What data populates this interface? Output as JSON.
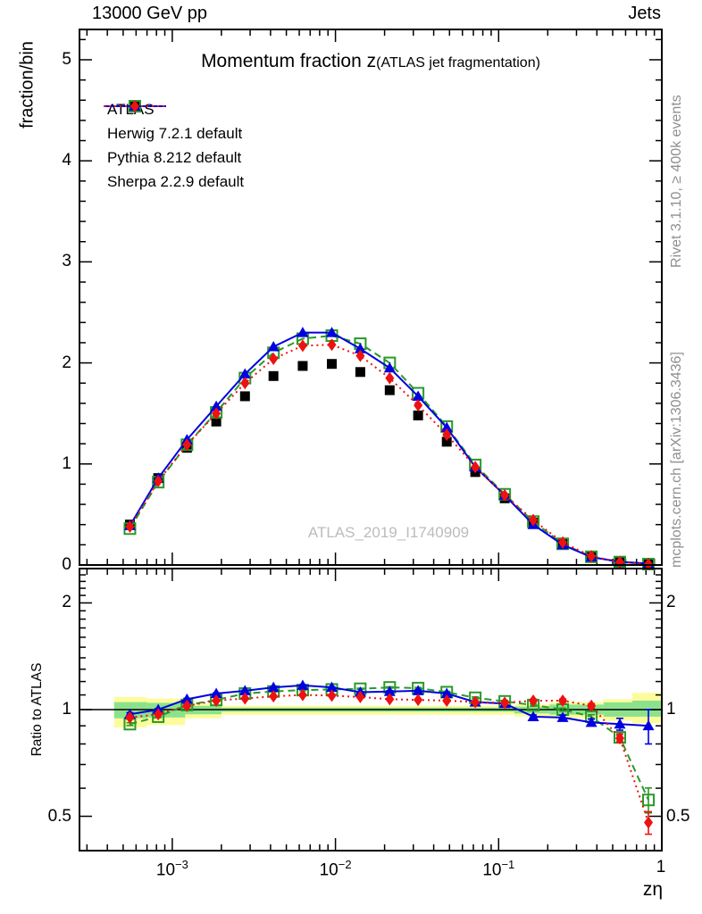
{
  "header": {
    "left": "13000 GeV pp",
    "right": "Jets"
  },
  "side_notes": {
    "top_right": "Rivet 3.1.10, ≥ 400k events",
    "bottom_right": "mcplots.cern.ch [arXiv:1306.3436]"
  },
  "chart_data": {
    "type": "line",
    "title": "Momentum fraction z",
    "title_suffix": "(ATLAS jet fragmentation)",
    "watermark": "ATLAS_2019_I1740909",
    "xlabel": "zη",
    "xscale": "log",
    "xlim": [
      0.00027,
      1.0
    ],
    "xaxis_tick_exponents": [
      -3,
      -2,
      -1
    ],
    "xaxis_last_tick": "1",
    "top_panel": {
      "ylabel": "fraction/bin",
      "ylim": [
        0,
        5.3
      ],
      "yticks": [
        0,
        1,
        2,
        3,
        4,
        5
      ],
      "minor_step": 0.2
    },
    "ratio_panel": {
      "ylabel": "Ratio to ATLAS",
      "yscale": "log",
      "ylim": [
        0.4,
        2.5
      ],
      "yticks": [
        0.5,
        1,
        2
      ]
    },
    "x": [
      0.00055,
      0.00082,
      0.00123,
      0.00186,
      0.00279,
      0.00417,
      0.0063,
      0.0095,
      0.0142,
      0.0215,
      0.0321,
      0.0481,
      0.0719,
      0.109,
      0.163,
      0.247,
      0.37,
      0.553,
      0.828
    ],
    "series": [
      {
        "name": "ATLAS",
        "color": "#000000",
        "marker": "filled-square",
        "line": "none",
        "values": [
          0.4,
          0.86,
          1.16,
          1.42,
          1.67,
          1.87,
          1.97,
          1.99,
          1.91,
          1.73,
          1.48,
          1.22,
          0.92,
          0.66,
          0.42,
          0.21,
          0.085,
          0.035,
          0.016
        ]
      },
      {
        "name": "Herwig 7.2.1 default",
        "color": "#2a992a",
        "marker": "open-square",
        "line": "dashed",
        "values": [
          0.36,
          0.82,
          1.19,
          1.51,
          1.85,
          2.1,
          2.24,
          2.27,
          2.19,
          2.0,
          1.7,
          1.37,
          0.99,
          0.7,
          0.43,
          0.21,
          0.081,
          0.029,
          0.009
        ],
        "ratio": [
          0.91,
          0.955,
          1.03,
          1.065,
          1.11,
          1.125,
          1.135,
          1.14,
          1.145,
          1.155,
          1.15,
          1.12,
          1.08,
          1.055,
          1.03,
          1.0,
          0.955,
          0.835,
          0.556
        ],
        "ratio_err": [
          0.008,
          0.006,
          0.005,
          0.005,
          0.004,
          0.004,
          0.004,
          0.004,
          0.004,
          0.005,
          0.005,
          0.006,
          0.006,
          0.007,
          0.008,
          0.01,
          0.012,
          0.02,
          0.045
        ]
      },
      {
        "name": "Pythia 8.212 default",
        "color": "#0000e0",
        "marker": "filled-triangle",
        "line": "solid",
        "values": [
          0.39,
          0.86,
          1.24,
          1.57,
          1.89,
          2.16,
          2.3,
          2.3,
          2.14,
          1.95,
          1.67,
          1.36,
          0.97,
          0.69,
          0.4,
          0.2,
          0.078,
          0.032,
          0.014
        ],
        "ratio": [
          0.97,
          1.0,
          1.07,
          1.11,
          1.13,
          1.155,
          1.17,
          1.155,
          1.12,
          1.125,
          1.13,
          1.11,
          1.05,
          1.04,
          0.955,
          0.95,
          0.92,
          0.91,
          0.9
        ],
        "ratio_err": [
          0.01,
          0.007,
          0.006,
          0.005,
          0.005,
          0.005,
          0.005,
          0.005,
          0.005,
          0.006,
          0.006,
          0.007,
          0.008,
          0.009,
          0.011,
          0.014,
          0.02,
          0.035,
          0.1
        ]
      },
      {
        "name": "Sherpa 2.2.9 default",
        "color": "#ee1111",
        "marker": "filled-diamond",
        "line": "dotted",
        "values": [
          0.38,
          0.83,
          1.19,
          1.5,
          1.8,
          2.04,
          2.17,
          2.18,
          2.07,
          1.85,
          1.58,
          1.29,
          0.97,
          0.69,
          0.445,
          0.223,
          0.087,
          0.029,
          0.008
        ],
        "ratio": [
          0.95,
          0.97,
          1.025,
          1.06,
          1.075,
          1.09,
          1.1,
          1.095,
          1.085,
          1.07,
          1.065,
          1.06,
          1.05,
          1.045,
          1.06,
          1.06,
          1.025,
          0.83,
          0.48
        ],
        "ratio_err": [
          0.009,
          0.007,
          0.005,
          0.005,
          0.004,
          0.004,
          0.004,
          0.004,
          0.004,
          0.005,
          0.005,
          0.006,
          0.006,
          0.007,
          0.009,
          0.011,
          0.014,
          0.022,
          0.035
        ]
      }
    ],
    "bands": {
      "yellow_color": "#fcfc9c",
      "green_color": "#8ce28c",
      "segments": [
        {
          "x1": 0.00044,
          "x2": 0.0007,
          "ylo": 0.89,
          "yhi": 1.085,
          "glo": 0.945,
          "ghi": 1.05
        },
        {
          "x1": 0.0007,
          "x2": 0.0012,
          "ylo": 0.905,
          "yhi": 1.075,
          "glo": 0.95,
          "ghi": 1.045
        },
        {
          "x1": 0.0012,
          "x2": 0.002,
          "ylo": 0.945,
          "yhi": 1.04,
          "glo": 0.97,
          "ghi": 1.025
        },
        {
          "x1": 0.002,
          "x2": 0.125,
          "ylo": 0.967,
          "yhi": 1.026,
          "glo": 0.986,
          "ghi": 1.013
        },
        {
          "x1": 0.125,
          "x2": 0.205,
          "ylo": 0.955,
          "yhi": 1.035,
          "glo": 0.975,
          "ghi": 1.02
        },
        {
          "x1": 0.205,
          "x2": 0.44,
          "ylo": 0.945,
          "yhi": 1.05,
          "glo": 0.968,
          "ghi": 1.033
        },
        {
          "x1": 0.44,
          "x2": 0.66,
          "ylo": 0.93,
          "yhi": 1.07,
          "glo": 0.955,
          "ghi": 1.048
        },
        {
          "x1": 0.66,
          "x2": 1.0,
          "ylo": 0.915,
          "yhi": 1.115,
          "glo": 0.955,
          "ghi": 1.06
        }
      ]
    }
  }
}
